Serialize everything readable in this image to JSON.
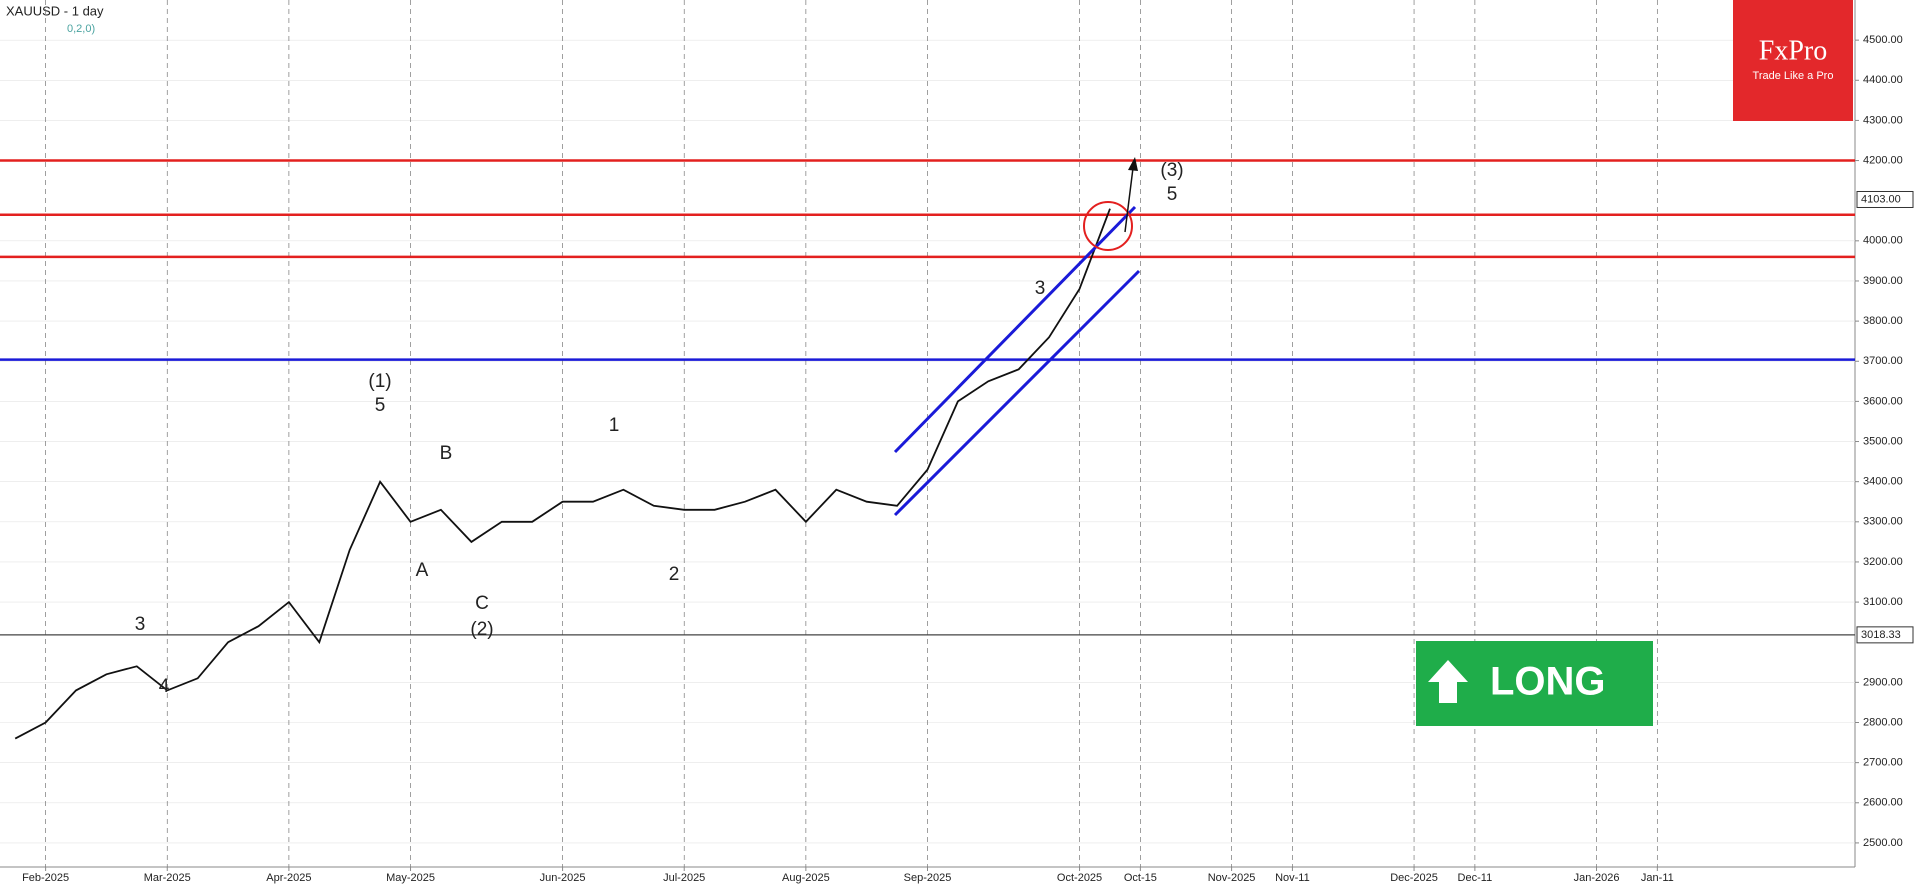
{
  "chart_data": {
    "type": "line",
    "title": "XAUUSD - 1 day",
    "subtitle": "0,2,0)",
    "categories": [
      null,
      "Feb-2025",
      null,
      null,
      null,
      "Mar-2025",
      null,
      null,
      null,
      "Apr-2025",
      null,
      null,
      null,
      "May-2025",
      null,
      null,
      null,
      null,
      "Jun-2025",
      null,
      null,
      null,
      "Jul-2025",
      null,
      null,
      null,
      "Aug-2025",
      null,
      null,
      null,
      "Sep-2025",
      null,
      null,
      null,
      null,
      "Oct-2025",
      null,
      "Oct-15",
      null,
      null,
      "Nov-2025",
      null,
      "Nov-11",
      null,
      null,
      null,
      "Dec-2025",
      null,
      "Dec-11",
      null,
      null,
      null,
      "Jan-2026",
      null,
      "Jan-11",
      null,
      null,
      null,
      null,
      null,
      null
    ],
    "values": [
      2760,
      2800,
      2880,
      2920,
      2940,
      2880,
      2910,
      3000,
      3040,
      3100,
      3000,
      3230,
      3400,
      3300,
      3330,
      3250,
      3300,
      3300,
      3350,
      3350,
      3380,
      3340,
      3330,
      3330,
      3350,
      3380,
      3300,
      3380,
      3350,
      3340,
      3430,
      3600,
      3650,
      3680,
      3760,
      3880,
      4080,
      null,
      null,
      null,
      null,
      null,
      null,
      null,
      null,
      null,
      null,
      null,
      null,
      null,
      null,
      null,
      null,
      null,
      null,
      null,
      null,
      null,
      null,
      null,
      null
    ],
    "color": "#111111",
    "ylim": [
      2440,
      4600
    ],
    "yticks": [
      {
        "value": 2500,
        "label": "2500.00"
      },
      {
        "value": 2600,
        "label": "2600.00"
      },
      {
        "value": 2700,
        "label": "2700.00"
      },
      {
        "value": 2800,
        "label": "2800.00"
      },
      {
        "value": 2900,
        "label": "2900.00"
      },
      {
        "value": 3100,
        "label": "3100.00"
      },
      {
        "value": 3200,
        "label": "3200.00"
      },
      {
        "value": 3300,
        "label": "3300.00"
      },
      {
        "value": 3400,
        "label": "3400.00"
      },
      {
        "value": 3500,
        "label": "3500.00"
      },
      {
        "value": 3600,
        "label": "3600.00"
      },
      {
        "value": 3700,
        "label": "3700.00"
      },
      {
        "value": 3800,
        "label": "3800.00"
      },
      {
        "value": 3900,
        "label": "3900.00"
      },
      {
        "value": 4000,
        "label": "4000.00"
      },
      {
        "value": 4200,
        "label": "4200.00"
      },
      {
        "value": 4300,
        "label": "4300.00"
      },
      {
        "value": 4400,
        "label": "4400.00"
      },
      {
        "value": 4500,
        "label": "4500.00"
      }
    ],
    "grid": true,
    "levels": [
      {
        "value": 4200,
        "color": "#e3201f"
      },
      {
        "value": 4065,
        "color": "#e3201f"
      },
      {
        "value": 3960,
        "color": "#e3201f"
      },
      {
        "value": 3704,
        "color": "#1a1ad8"
      },
      {
        "value": 3018.33,
        "color": "#444444"
      }
    ],
    "price_markers": [
      {
        "value": 4103,
        "label": "4103.00"
      },
      {
        "value": 3018.33,
        "label": "3018.33"
      }
    ],
    "annotations": [
      "(1)",
      "5",
      "(2)",
      "C",
      "A",
      "B",
      "1",
      "2",
      "3",
      "4",
      "3",
      "(3)",
      "5"
    ],
    "badge": "LONG",
    "logo": {
      "brand": "FxPro",
      "tagline": "Trade Like a Pro"
    }
  }
}
